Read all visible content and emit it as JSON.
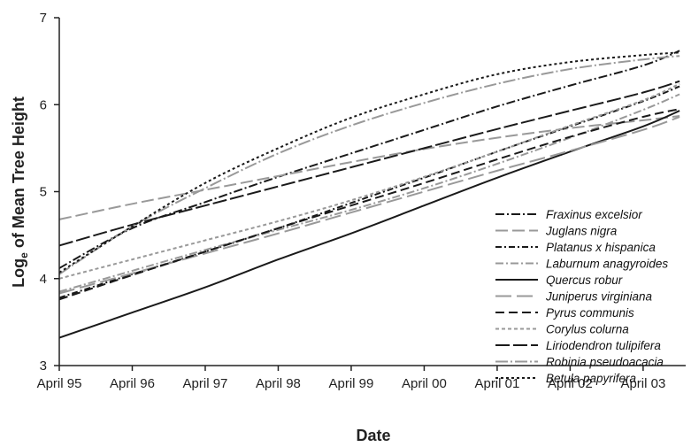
{
  "chart_data": {
    "type": "line",
    "xlabel": "Date",
    "ylabel_main": "Log",
    "ylabel_sub": "e",
    "ylabel_rest": " of Mean Tree Height",
    "ylim": [
      3,
      7
    ],
    "yticks": [
      3,
      4,
      5,
      6,
      7
    ],
    "xlim": [
      "1995-04",
      "2003-11"
    ],
    "xticks": [
      "April 95",
      "April 96",
      "April 97",
      "April 98",
      "April 99",
      "April 00",
      "April 01",
      "April 02",
      "April 03"
    ],
    "grid": false,
    "legend_position": "right",
    "x": [
      "1995-04",
      "1996-04",
      "1997-04",
      "1998-04",
      "1999-04",
      "2000-04",
      "2001-04",
      "2002-04",
      "2003-04",
      "2003-10"
    ],
    "series": [
      {
        "name": "Fraxinus excelsior",
        "color": "#1a1a1a",
        "dash": "10,3,2,3",
        "values": [
          4.12,
          4.58,
          4.88,
          5.17,
          5.44,
          5.71,
          5.98,
          6.22,
          6.45,
          6.62
        ]
      },
      {
        "name": "Juglans nigra",
        "color": "#999999",
        "dash": "14,5",
        "values": [
          4.68,
          4.86,
          5.02,
          5.18,
          5.34,
          5.49,
          5.62,
          5.73,
          5.82,
          5.87
        ]
      },
      {
        "name": "Platanus x hispanica",
        "color": "#1a1a1a",
        "dash": "7,3,2,3",
        "values": [
          3.78,
          4.05,
          4.31,
          4.58,
          4.87,
          5.16,
          5.46,
          5.75,
          6.04,
          6.21
        ]
      },
      {
        "name": "Laburnum anagyroides",
        "color": "#999999",
        "dash": "9,3,2,3",
        "values": [
          3.85,
          4.09,
          4.33,
          4.56,
          4.79,
          5.04,
          5.32,
          5.62,
          5.94,
          6.12
        ]
      },
      {
        "name": "Quercus robur",
        "color": "#1a1a1a",
        "dash": "",
        "values": [
          3.32,
          3.61,
          3.9,
          4.22,
          4.52,
          4.84,
          5.16,
          5.46,
          5.75,
          5.93
        ]
      },
      {
        "name": "Juniperus virginiana",
        "color": "#999999",
        "dash": "18,6",
        "values": [
          3.83,
          4.06,
          4.29,
          4.52,
          4.76,
          5.0,
          5.24,
          5.47,
          5.71,
          5.86
        ]
      },
      {
        "name": "Pyrus communis",
        "color": "#1a1a1a",
        "dash": "10,5",
        "values": [
          3.76,
          4.04,
          4.31,
          4.58,
          4.84,
          5.1,
          5.37,
          5.63,
          5.86,
          5.95
        ]
      },
      {
        "name": "Corylus colurna",
        "color": "#999999",
        "dash": "4,3",
        "values": [
          4.0,
          4.22,
          4.44,
          4.66,
          4.9,
          5.17,
          5.46,
          5.76,
          6.05,
          6.24
        ]
      },
      {
        "name": "Liriodendron tulipifera",
        "color": "#1a1a1a",
        "dash": "16,4",
        "values": [
          4.38,
          4.62,
          4.84,
          5.06,
          5.28,
          5.5,
          5.72,
          5.93,
          6.14,
          6.27
        ]
      },
      {
        "name": "Robinia pseudoacacia",
        "color": "#999999",
        "dash": "14,3,2,3",
        "values": [
          4.05,
          4.6,
          5.04,
          5.44,
          5.76,
          6.02,
          6.24,
          6.41,
          6.52,
          6.56
        ]
      },
      {
        "name": "Betula papyrifera",
        "color": "#1a1a1a",
        "dash": "3,3",
        "values": [
          4.07,
          4.6,
          5.1,
          5.5,
          5.85,
          6.12,
          6.35,
          6.49,
          6.57,
          6.6
        ]
      }
    ]
  }
}
